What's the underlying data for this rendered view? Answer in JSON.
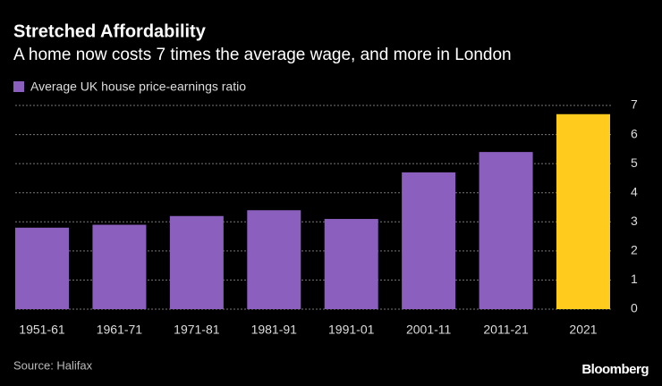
{
  "chart_data": {
    "type": "bar",
    "title": "Stretched Affordability",
    "subtitle": "A home now costs 7 times the average wage, and more in London",
    "categories": [
      "1951-61",
      "1961-71",
      "1971-81",
      "1981-91",
      "1991-01",
      "2001-11",
      "2011-21",
      "2021"
    ],
    "series": [
      {
        "name": "Average UK house price-earnings ratio",
        "color": "#8a5fbe",
        "values": [
          2.8,
          2.9,
          3.2,
          3.4,
          3.1,
          4.7,
          5.4,
          6.7
        ],
        "colors": [
          "#8a5fbe",
          "#8a5fbe",
          "#8a5fbe",
          "#8a5fbe",
          "#8a5fbe",
          "#8a5fbe",
          "#8a5fbe",
          "#ffcc1e"
        ]
      }
    ],
    "ylim": [
      0,
      7
    ],
    "yticks": [
      0,
      1,
      2,
      3,
      4,
      5,
      6,
      7
    ],
    "grid": true,
    "source": "Source: Halifax",
    "brand": "Bloomberg"
  }
}
